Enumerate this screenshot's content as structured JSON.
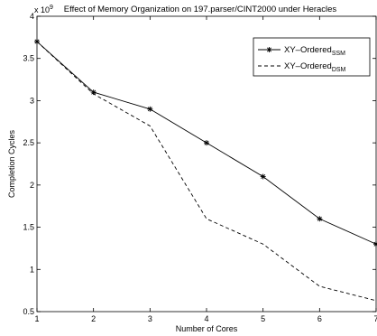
{
  "chart_data": {
    "type": "line",
    "title": "Effect of Memory Organization on 197.parser/CINT2000 under Heracles",
    "xlabel": "Number of Cores",
    "ylabel": "Completion Cycles",
    "y_exponent_label": "x 10",
    "y_exponent": "9",
    "x": [
      1,
      2,
      3,
      4,
      5,
      6,
      7
    ],
    "xlim": [
      1,
      7
    ],
    "ylim": [
      0.5,
      4
    ],
    "x_ticks": [
      "1",
      "2",
      "3",
      "4",
      "5",
      "6",
      "7"
    ],
    "y_ticks": [
      0.5,
      1,
      1.5,
      2,
      2.5,
      3,
      3.5,
      4
    ],
    "y_tick_labels": [
      "0.5",
      "1",
      "1.5",
      "2",
      "2.5",
      "3",
      "3.5",
      "4"
    ],
    "grid": false,
    "legend_position": "top-right",
    "series": [
      {
        "name": "XY–Ordered",
        "name_sub": "SSM",
        "values": [
          3.7,
          3.1,
          2.9,
          2.5,
          2.1,
          1.6,
          1.3
        ],
        "style": "solid",
        "marker": "star",
        "color": "#000000"
      },
      {
        "name": "XY–Ordered",
        "name_sub": "DSM",
        "values": [
          3.7,
          3.08,
          2.7,
          1.6,
          1.3,
          0.8,
          0.63
        ],
        "style": "dashed",
        "marker": "none",
        "color": "#000000"
      }
    ]
  }
}
